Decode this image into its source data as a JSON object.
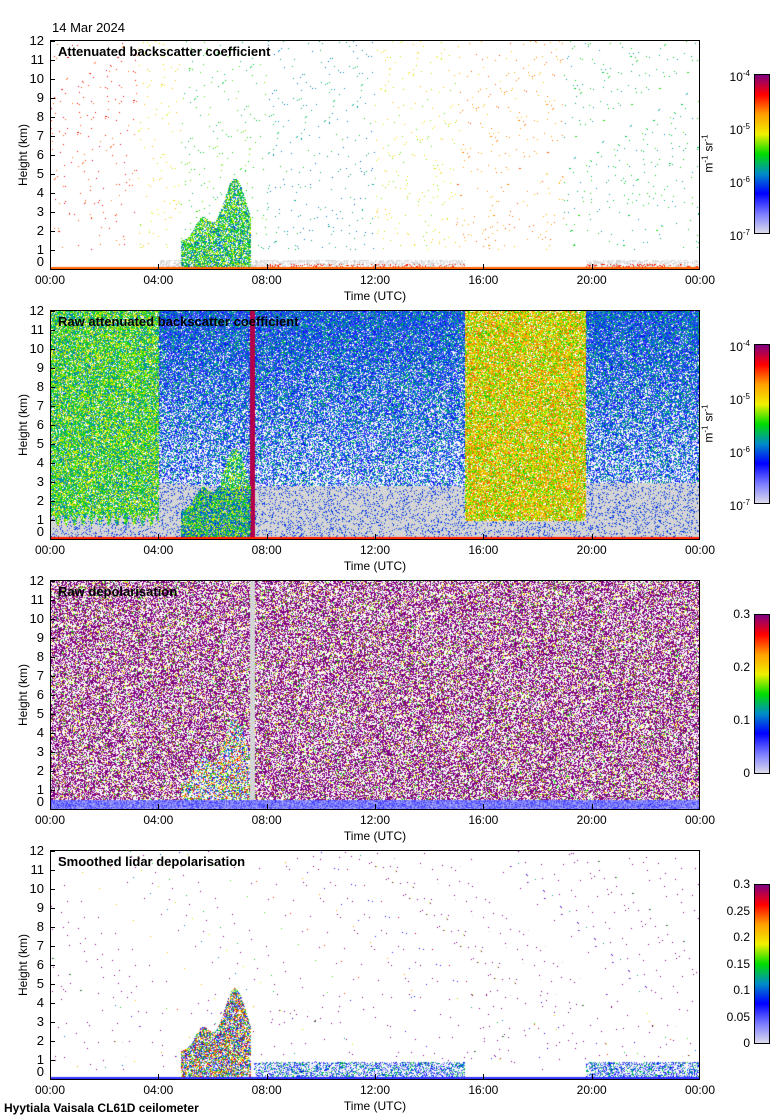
{
  "date": "14 Mar 2024",
  "footer": "Hyytiala Vaisala CL61D ceilometer",
  "colormap": [
    "#dcdceb",
    "#7878ff",
    "#0000ff",
    "#008cc8",
    "#00dc00",
    "#f0f000",
    "#ffa000",
    "#ff0000",
    "#800080"
  ],
  "chart_data": [
    {
      "type": "heatmap",
      "title": "Attenuated backscatter coefficient",
      "xlabel": "Time (UTC)",
      "ylabel": "Height (km)",
      "xlim": [
        0,
        24
      ],
      "ylim": [
        0,
        12
      ],
      "xticks": [
        "00:00",
        "04:00",
        "08:00",
        "12:00",
        "16:00",
        "20:00",
        "00:00"
      ],
      "yticks": [
        "0",
        "1",
        "2",
        "3",
        "4",
        "5",
        "6",
        "7",
        "8",
        "9",
        "10",
        "11",
        "12"
      ],
      "colorbar": {
        "scale": "log",
        "range": [
          1e-07,
          0.0001
        ],
        "unit": {
          "m": "m",
          "m_exp": "-1",
          "sr": "sr",
          "sr_exp": "-1"
        },
        "ticks": [
          {
            "base": "10",
            "exp": "-4"
          },
          {
            "base": "10",
            "exp": "-5"
          },
          {
            "base": "10",
            "exp": "-6"
          },
          {
            "base": "10",
            "exp": "-7"
          }
        ]
      }
    },
    {
      "type": "heatmap",
      "title": "Raw attenuated backscatter coefficient",
      "xlabel": "Time (UTC)",
      "ylabel": "Height (km)",
      "xlim": [
        0,
        24
      ],
      "ylim": [
        0,
        12
      ],
      "xticks": [
        "00:00",
        "04:00",
        "08:00",
        "12:00",
        "16:00",
        "20:00",
        "00:00"
      ],
      "yticks": [
        "0",
        "1",
        "2",
        "3",
        "4",
        "5",
        "6",
        "7",
        "8",
        "9",
        "10",
        "11",
        "12"
      ],
      "colorbar": {
        "scale": "log",
        "range": [
          1e-07,
          0.0001
        ],
        "unit": {
          "m": "m",
          "m_exp": "-1",
          "sr": "sr",
          "sr_exp": "-1"
        },
        "ticks": [
          {
            "base": "10",
            "exp": "-4"
          },
          {
            "base": "10",
            "exp": "-5"
          },
          {
            "base": "10",
            "exp": "-6"
          },
          {
            "base": "10",
            "exp": "-7"
          }
        ]
      }
    },
    {
      "type": "heatmap",
      "title": "Raw depolarisation",
      "xlabel": "Time (UTC)",
      "ylabel": "Height (km)",
      "xlim": [
        0,
        24
      ],
      "ylim": [
        0,
        12
      ],
      "xticks": [
        "00:00",
        "04:00",
        "08:00",
        "12:00",
        "16:00",
        "20:00",
        "00:00"
      ],
      "yticks": [
        "0",
        "1",
        "2",
        "3",
        "4",
        "5",
        "6",
        "7",
        "8",
        "9",
        "10",
        "11",
        "12"
      ],
      "colorbar": {
        "scale": "linear",
        "range": [
          0,
          0.3
        ],
        "ticks": [
          {
            "base": "0.3"
          },
          {
            "base": "0.2"
          },
          {
            "base": "0.1"
          },
          {
            "base": "0"
          }
        ]
      }
    },
    {
      "type": "heatmap",
      "title": "Smoothed lidar depolarisation",
      "xlabel": "Time (UTC)",
      "ylabel": "Height (km)",
      "xlim": [
        0,
        24
      ],
      "ylim": [
        0,
        12
      ],
      "xticks": [
        "00:00",
        "04:00",
        "08:00",
        "12:00",
        "16:00",
        "20:00",
        "00:00"
      ],
      "yticks": [
        "0",
        "1",
        "2",
        "3",
        "4",
        "5",
        "6",
        "7",
        "8",
        "9",
        "10",
        "11",
        "12"
      ],
      "colorbar": {
        "scale": "linear",
        "range": [
          0,
          0.3
        ],
        "ticks": [
          {
            "base": "0.3"
          },
          {
            "base": "0.25"
          },
          {
            "base": "0.2"
          },
          {
            "base": "0.15"
          },
          {
            "base": "0.1"
          },
          {
            "base": "0.05"
          },
          {
            "base": "0"
          }
        ]
      }
    }
  ]
}
